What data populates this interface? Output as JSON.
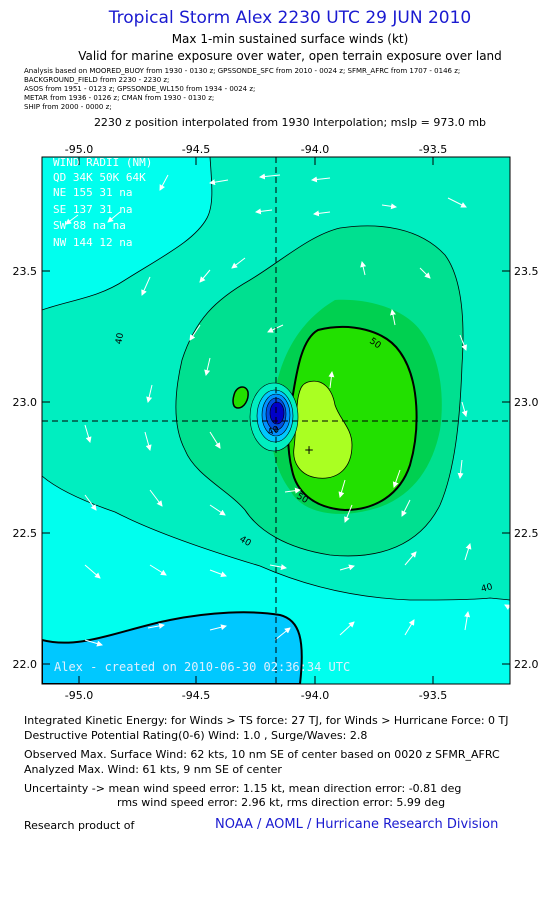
{
  "header": {
    "title": "Tropical Storm Alex 2230 UTC 29 JUN 2010",
    "subtitle1": "Max 1-min sustained surface winds (kt)",
    "subtitle2": "Valid for marine exposure over water, open terrain exposure over land",
    "meta_lines": [
      "Analysis based on  MOORED_BUOY from 1930 - 0130 z;  GPSSONDE_SFC from 2010 - 0024 z;  SFMR_AFRC from 1707 - 0146 z;",
      "BACKGROUND_FIELD from 2230 - 2230 z;",
      "ASOS from 1951 - 0123 z;  GPSSONDE_WL150 from 1934 - 0024 z;",
      "METAR from 1936 - 0126 z;  CMAN from 1930 - 0130 z;",
      "SHIP from 2000 - 0000 z;"
    ],
    "position_line": "2230 z position interpolated from 1930 Interpolation; mslp = 973.0 mb"
  },
  "wind_radii": {
    "title": "WIND RADII (NM)",
    "header_row": "QD  34K  50K  64K",
    "rows": [
      "NE  155   31   na",
      "SE  137   31   na",
      "SW   88   na   na",
      "NW  144   12   na"
    ]
  },
  "watermark": "Alex - created on 2010-06-30 02:36:34 UTC",
  "contour_labels": [
    "40",
    "40",
    "40",
    "50",
    "50",
    "40"
  ],
  "footer": {
    "ike": "Integrated Kinetic Energy:  for Winds > TS force: 27 TJ,  for Winds > Hurricane Force: 0 TJ",
    "dpr": "Destructive Potential Rating(0-6)   Wind: 1.0 , Surge/Waves: 2.8",
    "observed": "Observed Max. Surface Wind: 62 kts, 10 nm SE of center based on 0020 z SFMR_AFRC",
    "analyzed": "Analyzed Max. Wind: 61 kts, 9 nm SE of center",
    "uncert1": "Uncertainty -> mean wind speed error: 1.15 kt,   mean direction error:  -0.81 deg",
    "uncert2": "rms wind speed error: 2.96 kt,   rms direction error: 5.99 deg",
    "research": "Research product of",
    "credit": "NOAA / AOML / Hurricane Research Division"
  },
  "colors": {
    "ts_low": "#00ffee",
    "ts_band1": "#00eec0",
    "ts_band2": "#00e090",
    "ts_band3": "#00d050",
    "hur_band": "#22e000",
    "core": "#aaff22",
    "center_blue": "#0000c8"
  },
  "chart_data": {
    "type": "contour",
    "xlabel": "",
    "ylabel": "",
    "xlim": [
      -95.2,
      -93.3
    ],
    "ylim": [
      21.92,
      23.92
    ],
    "x_ticks": [
      "-95.0",
      "-94.5",
      "-94.0",
      "-93.5"
    ],
    "y_ticks": [
      "22.0",
      "22.5",
      "23.0",
      "23.5"
    ],
    "center": {
      "lon": -94.17,
      "lat": 22.93
    },
    "contour_levels_kt": [
      40,
      50
    ],
    "grid": false
  }
}
